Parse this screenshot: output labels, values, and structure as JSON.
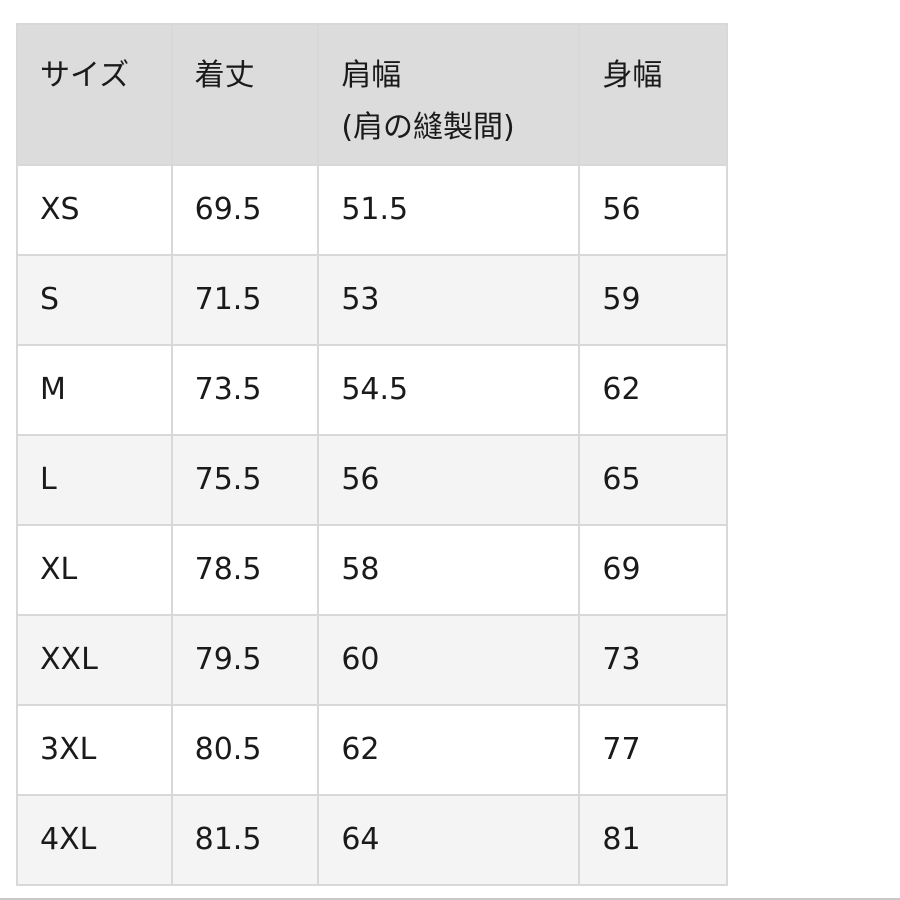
{
  "table": {
    "headers": [
      "サイズ",
      "着丈",
      "肩幅",
      "身幅"
    ],
    "header_sub": {
      "shoulder": "(肩の縫製間)"
    },
    "rows": [
      [
        "XS",
        "69.5",
        "51.5",
        "56"
      ],
      [
        "S",
        "71.5",
        "53",
        "59"
      ],
      [
        "M",
        "73.5",
        "54.5",
        "62"
      ],
      [
        "L",
        "75.5",
        "56",
        "65"
      ],
      [
        "XL",
        "78.5",
        "58",
        "69"
      ],
      [
        "XXL",
        "79.5",
        "60",
        "73"
      ],
      [
        "3XL",
        "80.5",
        "62",
        "77"
      ],
      [
        "4XL",
        "81.5",
        "64",
        "81"
      ]
    ]
  },
  "colors": {
    "header_bg": "#dcdcdc",
    "alt_row_bg": "#f4f4f4",
    "border": "#d8d8d8"
  }
}
